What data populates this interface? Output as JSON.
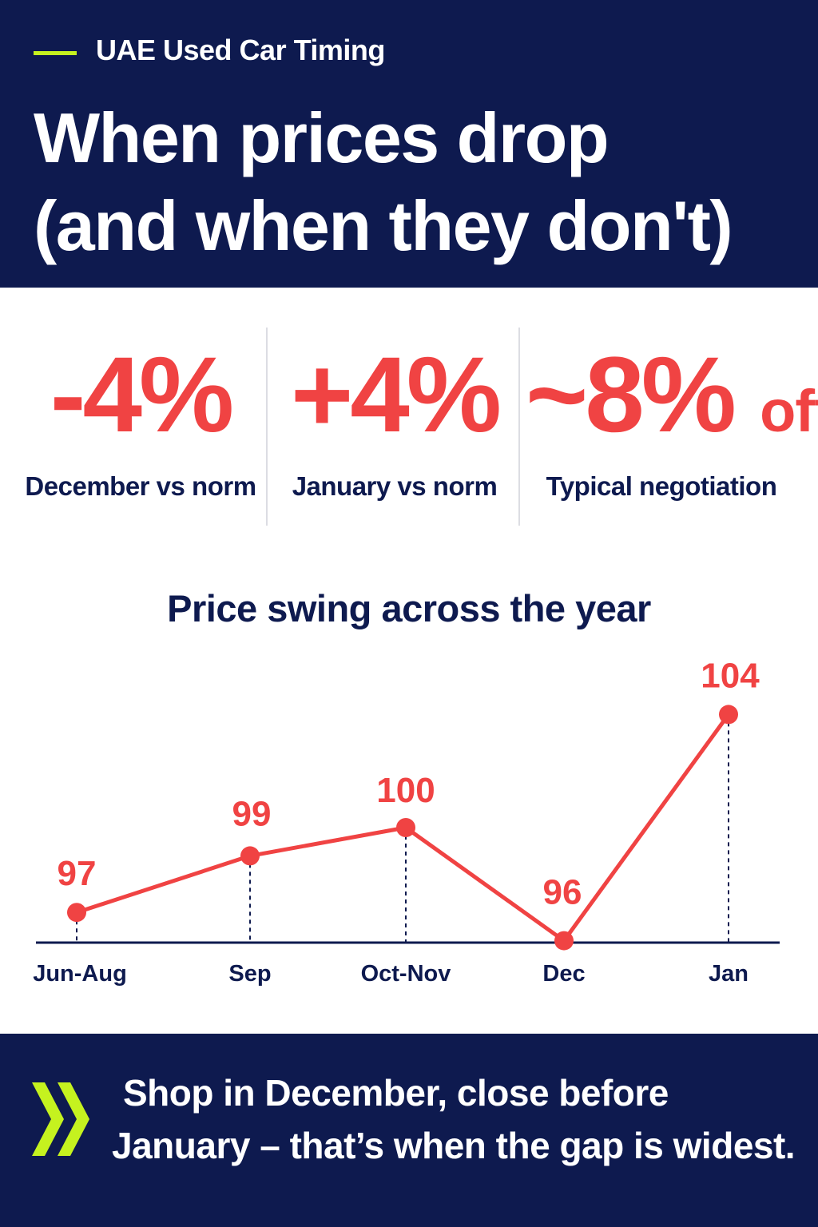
{
  "header": {
    "eyebrow": "UAE Used Car Timing",
    "headline_line1": "When prices drop",
    "headline_line2": "(and when they don't)"
  },
  "stats": [
    {
      "value": "-4%",
      "label": "December vs norm"
    },
    {
      "value": "+4%",
      "label": "January vs norm"
    },
    {
      "value": "~8%",
      "value_suffix": "off",
      "label": "Typical negotiation"
    }
  ],
  "chart_data": {
    "type": "line",
    "title": "Price swing across the year",
    "categories": [
      "Jun-Aug",
      "Sep",
      "Oct-Nov",
      "Dec",
      "Jan"
    ],
    "values": [
      97,
      99,
      100,
      96,
      104
    ],
    "data_labels": [
      "97",
      "99",
      "100",
      "96",
      "104"
    ],
    "xlabel": "",
    "ylabel": "",
    "ylim": [
      95,
      105
    ],
    "grid": false,
    "legend": "none"
  },
  "footer": {
    "line1": "Shop in December, close before",
    "line2": "January – that’s when the gap is widest."
  },
  "colors": {
    "navy": "#0e1a4f",
    "accent_red": "#f04343",
    "accent_lime": "#c5f21f",
    "white": "#ffffff"
  },
  "icons": {
    "footer_icon": "double-chevron-right-icon"
  }
}
